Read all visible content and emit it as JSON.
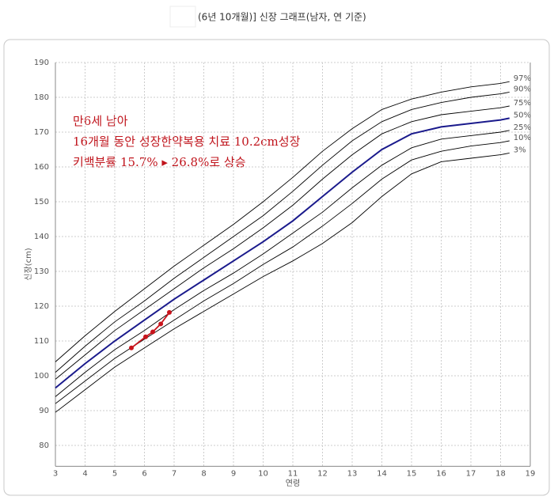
{
  "chart_data": {
    "type": "line",
    "title": "(6년 10개월)] 신장 그래프(남자, 연 기준)",
    "xlabel": "연령",
    "ylabel": "신장(cm)",
    "annotations": [
      "만6세 남아",
      "16개월 동안 성장한약복용 치료 10.2cm성장",
      "키백분률 15.7% ▸ 26.8%로 상승"
    ],
    "xlim": [
      3,
      19
    ],
    "ylim": [
      74,
      190
    ],
    "xticks": [
      3,
      4,
      5,
      6,
      7,
      8,
      9,
      10,
      11,
      12,
      13,
      14,
      15,
      16,
      17,
      18,
      19
    ],
    "yticks": [
      80,
      90,
      100,
      110,
      120,
      130,
      140,
      150,
      160,
      170,
      180,
      190
    ],
    "grid": true,
    "series": [
      {
        "name": "97%",
        "color": "#000000",
        "x": [
          3,
          4,
          5,
          6,
          7,
          8,
          9,
          10,
          11,
          12,
          13,
          14,
          15,
          16,
          17,
          18,
          18.3
        ],
        "values": [
          104,
          111.5,
          118.5,
          125,
          131.5,
          137.5,
          143.5,
          150,
          157,
          164.5,
          171,
          176.5,
          179.5,
          181.5,
          183,
          184,
          184.5
        ]
      },
      {
        "name": "90%",
        "color": "#000000",
        "x": [
          3,
          4,
          5,
          6,
          7,
          8,
          9,
          10,
          11,
          12,
          13,
          14,
          15,
          16,
          17,
          18,
          18.3
        ],
        "values": [
          101,
          108.5,
          115.5,
          121.5,
          128,
          134,
          140,
          146,
          153,
          160.5,
          167.5,
          173,
          176.5,
          178.5,
          180,
          181,
          181.5
        ]
      },
      {
        "name": "75%",
        "color": "#000000",
        "x": [
          3,
          4,
          5,
          6,
          7,
          8,
          9,
          10,
          11,
          12,
          13,
          14,
          15,
          16,
          17,
          18,
          18.3
        ],
        "values": [
          99,
          106,
          113,
          119,
          125,
          131,
          136.5,
          142.5,
          149,
          156.5,
          163.5,
          169.5,
          173,
          175,
          176,
          177,
          177.5
        ]
      },
      {
        "name": "50%",
        "color": "#1a1a8c",
        "x": [
          3,
          4,
          5,
          6,
          7,
          8,
          9,
          10,
          11,
          12,
          13,
          14,
          15,
          16,
          17,
          18,
          18.3
        ],
        "values": [
          96.5,
          103.5,
          110,
          116,
          122,
          127.5,
          133,
          138.5,
          144.5,
          151.5,
          158.5,
          165,
          169.5,
          171.5,
          172.5,
          173.5,
          174
        ]
      },
      {
        "name": "25%",
        "color": "#000000",
        "x": [
          3,
          4,
          5,
          6,
          7,
          8,
          9,
          10,
          11,
          12,
          13,
          14,
          15,
          16,
          17,
          18,
          18.3
        ],
        "values": [
          94,
          101,
          107.5,
          113,
          119,
          124.5,
          129.5,
          135,
          141,
          147,
          154,
          160.5,
          165.5,
          168,
          169,
          170,
          170.5
        ]
      },
      {
        "name": "10%",
        "color": "#000000",
        "x": [
          3,
          4,
          5,
          6,
          7,
          8,
          9,
          10,
          11,
          12,
          13,
          14,
          15,
          16,
          17,
          18,
          18.3
        ],
        "values": [
          92,
          98.5,
          105,
          110.5,
          116,
          121.5,
          126.5,
          132,
          137,
          143,
          149.5,
          156.5,
          162,
          164.5,
          166,
          167,
          167.5
        ]
      },
      {
        "name": "3%",
        "color": "#000000",
        "x": [
          3,
          4,
          5,
          6,
          7,
          8,
          9,
          10,
          11,
          12,
          13,
          14,
          15,
          16,
          17,
          18,
          18.3
        ],
        "values": [
          89.5,
          96,
          102.5,
          108,
          113.5,
          118.5,
          123.5,
          128.5,
          133,
          138,
          144,
          151.5,
          158,
          161.5,
          162.5,
          163.5,
          164
        ]
      },
      {
        "color": "#c8141c",
        "x": [
          5.56,
          6.04,
          6.28,
          6.55,
          6.84
        ],
        "values": [
          108,
          111.2,
          112.6,
          114.9,
          118.2
        ]
      }
    ]
  }
}
